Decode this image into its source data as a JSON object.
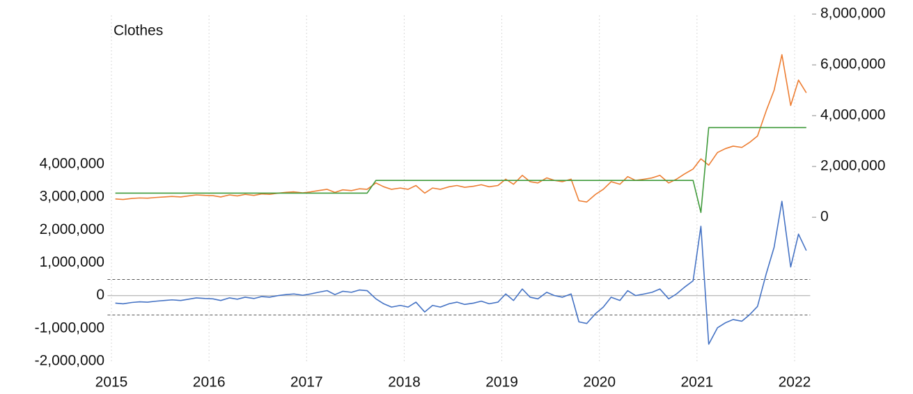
{
  "chart_data": {
    "type": "line",
    "title": "Clothes",
    "x": [
      2015.04,
      2015.12,
      2015.21,
      2015.29,
      2015.37,
      2015.46,
      2015.54,
      2015.62,
      2015.71,
      2015.79,
      2015.87,
      2015.96,
      2016.04,
      2016.12,
      2016.21,
      2016.29,
      2016.37,
      2016.46,
      2016.54,
      2016.62,
      2016.71,
      2016.79,
      2016.87,
      2016.96,
      2017.04,
      2017.12,
      2017.21,
      2017.29,
      2017.37,
      2017.46,
      2017.54,
      2017.62,
      2017.71,
      2017.79,
      2017.87,
      2017.96,
      2018.04,
      2018.12,
      2018.21,
      2018.29,
      2018.37,
      2018.46,
      2018.54,
      2018.62,
      2018.71,
      2018.79,
      2018.87,
      2018.96,
      2019.04,
      2019.12,
      2019.21,
      2019.29,
      2019.37,
      2019.46,
      2019.54,
      2019.62,
      2019.71,
      2019.79,
      2019.87,
      2019.96,
      2020.04,
      2020.12,
      2020.21,
      2020.29,
      2020.37,
      2020.46,
      2020.54,
      2020.62,
      2020.71,
      2020.79,
      2020.87,
      2020.96,
      2021.04,
      2021.12,
      2021.21,
      2021.29,
      2021.37,
      2021.46,
      2021.54,
      2021.62,
      2021.71,
      2021.79,
      2021.87,
      2021.96,
      2022.04,
      2022.12
    ],
    "series": [
      {
        "color": "#ed7d31",
        "axis": "y2",
        "values": [
          720000,
          700000,
          740000,
          760000,
          750000,
          780000,
          800000,
          820000,
          800000,
          840000,
          880000,
          860000,
          850000,
          800000,
          880000,
          840000,
          900000,
          860000,
          920000,
          900000,
          950000,
          980000,
          1000000,
          960000,
          1000000,
          1050000,
          1100000,
          980000,
          1080000,
          1050000,
          1120000,
          1100000,
          1350000,
          1200000,
          1100000,
          1150000,
          1100000,
          1250000,
          950000,
          1150000,
          1100000,
          1200000,
          1250000,
          1180000,
          1220000,
          1280000,
          1200000,
          1250000,
          1500000,
          1300000,
          1650000,
          1400000,
          1350000,
          1550000,
          1450000,
          1400000,
          1500000,
          650000,
          600000,
          900000,
          1100000,
          1400000,
          1300000,
          1600000,
          1450000,
          1500000,
          1550000,
          1650000,
          1350000,
          1500000,
          1700000,
          1900000,
          2300000,
          2050000,
          2550000,
          2700000,
          2800000,
          2750000,
          2950000,
          3200000,
          4200000,
          5000000,
          6400000,
          4400000,
          5400000,
          4900000
        ]
      },
      {
        "color": "#3f9a3a",
        "axis": "y2",
        "values": [
          950000,
          950000,
          950000,
          950000,
          950000,
          950000,
          950000,
          950000,
          950000,
          950000,
          950000,
          950000,
          950000,
          950000,
          950000,
          950000,
          950000,
          950000,
          950000,
          950000,
          950000,
          950000,
          950000,
          950000,
          950000,
          950000,
          950000,
          950000,
          950000,
          950000,
          950000,
          950000,
          1450000,
          1450000,
          1450000,
          1450000,
          1450000,
          1450000,
          1450000,
          1450000,
          1450000,
          1450000,
          1450000,
          1450000,
          1450000,
          1450000,
          1450000,
          1450000,
          1450000,
          1450000,
          1450000,
          1450000,
          1450000,
          1450000,
          1450000,
          1450000,
          1450000,
          1450000,
          1450000,
          1450000,
          1450000,
          1450000,
          1450000,
          1450000,
          1450000,
          1450000,
          1450000,
          1450000,
          1450000,
          1450000,
          1450000,
          1450000,
          190000,
          3530000,
          3530000,
          3530000,
          3530000,
          3530000,
          3530000,
          3530000,
          3530000,
          3530000,
          3530000,
          3530000,
          3530000,
          3530000
        ]
      },
      {
        "color": "#4472c4",
        "axis": "y",
        "values": [
          -230000,
          -250000,
          -210000,
          -190000,
          -200000,
          -170000,
          -150000,
          -130000,
          -150000,
          -110000,
          -70000,
          -90000,
          -100000,
          -150000,
          -70000,
          -110000,
          -50000,
          -90000,
          -30000,
          -50000,
          0,
          30000,
          50000,
          10000,
          50000,
          100000,
          150000,
          30000,
          130000,
          100000,
          170000,
          150000,
          -100000,
          -250000,
          -350000,
          -300000,
          -350000,
          -200000,
          -500000,
          -300000,
          -350000,
          -250000,
          -200000,
          -270000,
          -230000,
          -170000,
          -250000,
          -200000,
          50000,
          -150000,
          200000,
          -50000,
          -100000,
          100000,
          0,
          -50000,
          50000,
          -800000,
          -850000,
          -550000,
          -350000,
          -50000,
          -150000,
          150000,
          0,
          50000,
          100000,
          200000,
          -100000,
          50000,
          250000,
          450000,
          2110000,
          -1480000,
          -980000,
          -830000,
          -730000,
          -780000,
          -580000,
          -330000,
          670000,
          1470000,
          2870000,
          870000,
          1870000,
          1370000
        ]
      }
    ],
    "hlines": [
      490000,
      -590000
    ],
    "xlim": [
      2014.96,
      2022.16
    ],
    "xticks": [
      2015,
      2016,
      2017,
      2018,
      2019,
      2020,
      2021,
      2022
    ],
    "ylim": [
      -2000000,
      8530000
    ],
    "yticks": [
      {
        "value": -2000000,
        "label": "-2,000,000"
      },
      {
        "value": -1000000,
        "label": "-1,000,000"
      },
      0,
      {
        "value": 1000000,
        "label": "1,000,000"
      },
      {
        "value": 2000000,
        "label": "2,000,000"
      },
      {
        "value": 3000000,
        "label": "3,000,000"
      },
      {
        "value": 4000000,
        "label": "4,000,000"
      }
    ],
    "y2lim": [
      -5670000,
      7950000
    ],
    "y2ticks": [
      0,
      {
        "value": 2000000,
        "label": "2,000,000"
      },
      {
        "value": 4000000,
        "label": "4,000,000"
      },
      {
        "value": 6000000,
        "label": "6,000,000"
      },
      {
        "value": 8000000,
        "label": "8,000,000"
      }
    ],
    "grid": true
  }
}
